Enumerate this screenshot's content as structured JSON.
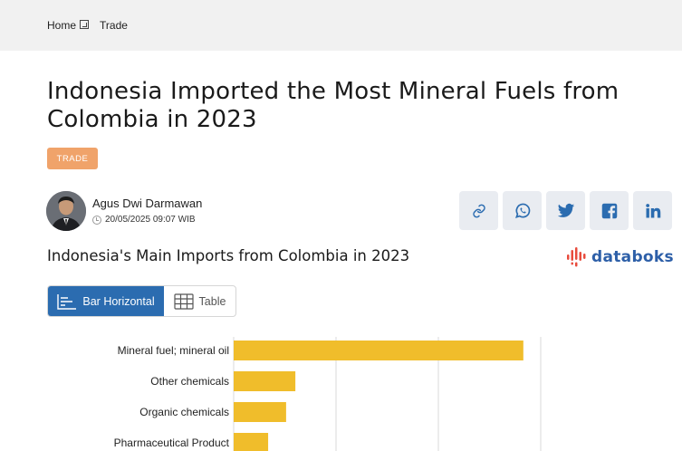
{
  "breadcrumb": {
    "home": "Home",
    "current": "Trade"
  },
  "article": {
    "title": "Indonesia Imported the Most Mineral Fuels from Colombia in 2023",
    "tag": "TRADE",
    "author": "Agus Dwi Darmawan",
    "published": "20/05/2025 09:07 WIB"
  },
  "share": [
    "link-icon",
    "whatsapp-icon",
    "twitter-icon",
    "facebook-icon",
    "linkedin-icon"
  ],
  "chart_header": {
    "title": "Indonesia's Main Imports from Colombia in 2023",
    "logo": "databoks"
  },
  "view_toggle": {
    "bar_label": "Bar Horizontal",
    "table_label": "Table"
  },
  "colors": {
    "bar": "#f0bd2b",
    "accent": "#2b6cb0",
    "tag": "#f0a36a"
  },
  "chart_data": {
    "type": "bar",
    "orientation": "horizontal",
    "categories": [
      "Mineral fuel; mineral oil",
      "Other chemicals",
      "Organic chemicals",
      "Pharmaceutical Product"
    ],
    "values": [
      100,
      21.3,
      18.1,
      11.9
    ],
    "grid": true
  }
}
